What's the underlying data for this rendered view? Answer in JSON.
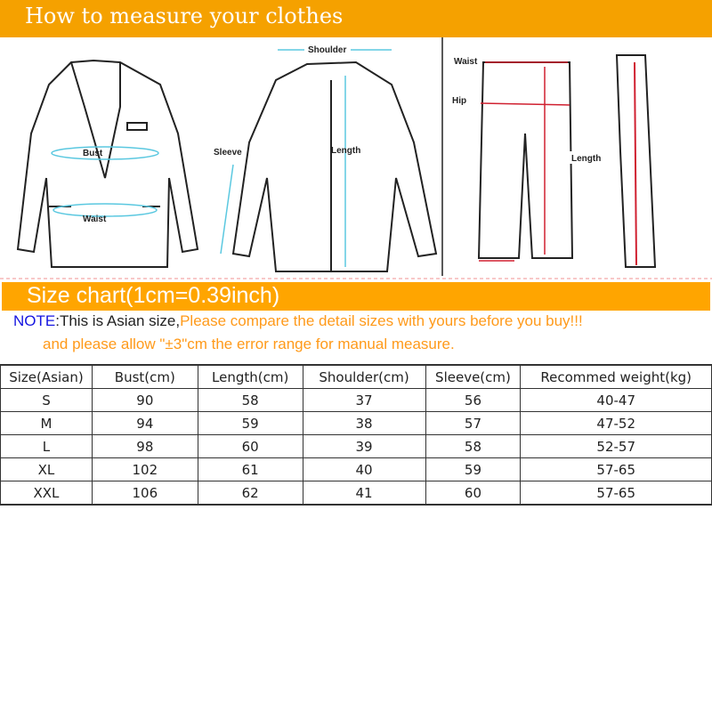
{
  "header": {
    "title": "How to measure your clothes"
  },
  "diagram": {
    "jacket_front": {
      "labels": [
        "Bust",
        "Waist"
      ]
    },
    "jacket_back": {
      "labels": [
        "Shoulder",
        "Sleeve",
        "Length"
      ]
    },
    "pants": {
      "labels": [
        "Waist",
        "Hip",
        "Length"
      ]
    }
  },
  "size_chart": {
    "title": "Size chart(1cm=0.39inch)"
  },
  "note": {
    "prefix": "NOTE",
    "colon": ":",
    "black_text": "This is Asian size,",
    "orange_text": "Please compare the detail sizes with yours before you buy!!!",
    "line2": "and please allow \"±3\"cm the error range for manual measure."
  },
  "colors": {
    "banner": "#ffa500",
    "note_blue": "#1515e0",
    "note_orange": "#ff9a1a",
    "measure_cyan": "#5bc8e0",
    "measure_red": "#d02030"
  },
  "table": {
    "headers": [
      "Size(Asian)",
      "Bust(cm)",
      "Length(cm)",
      "Shoulder(cm)",
      "Sleeve(cm)",
      "Recommed weight(kg)"
    ],
    "rows": [
      [
        "S",
        "90",
        "58",
        "37",
        "56",
        "40-47"
      ],
      [
        "M",
        "94",
        "59",
        "38",
        "57",
        "47-52"
      ],
      [
        "L",
        "98",
        "60",
        "39",
        "58",
        "52-57"
      ],
      [
        "XL",
        "102",
        "61",
        "40",
        "59",
        "57-65"
      ],
      [
        "XXL",
        "106",
        "62",
        "41",
        "60",
        "57-65"
      ]
    ]
  }
}
